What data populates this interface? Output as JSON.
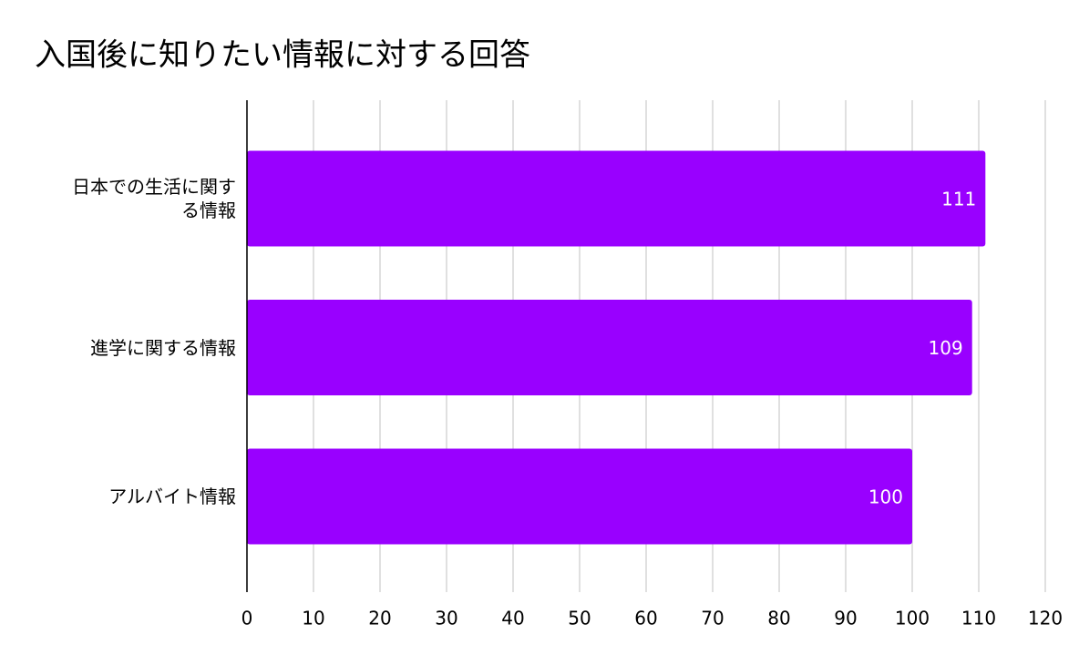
{
  "chart_data": {
    "type": "bar",
    "orientation": "horizontal",
    "title": "入国後に知りたい情報に対する回答",
    "categories": [
      "日本での生活に関する情報",
      "進学に関する情報",
      "アルバイト情報"
    ],
    "values": [
      111,
      109,
      100
    ],
    "color": "#9900ff",
    "xlim": [
      0,
      120
    ],
    "xticks": [
      0,
      10,
      20,
      30,
      40,
      50,
      60,
      70,
      80,
      90,
      100,
      110,
      120
    ],
    "grid": true
  }
}
